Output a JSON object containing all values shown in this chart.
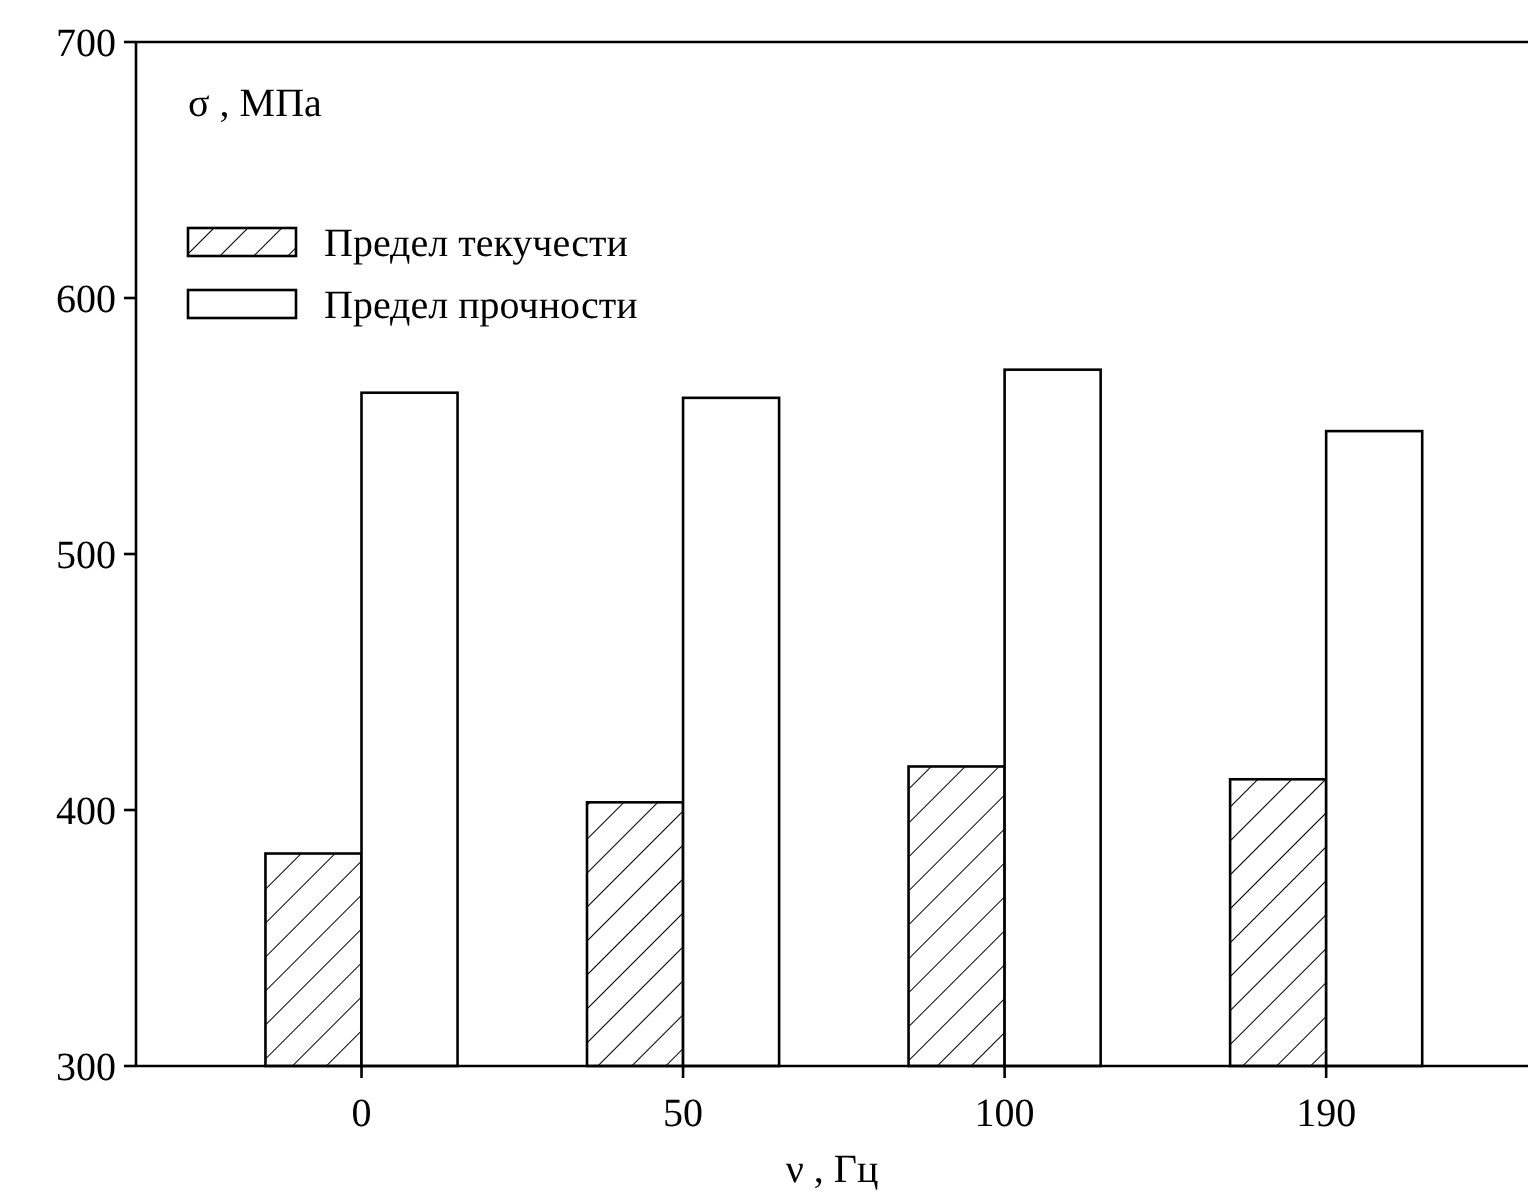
{
  "chart_data": {
    "type": "bar",
    "xlabel": "ν , Гц",
    "ylabel": "σ , МПа",
    "categories": [
      "0",
      "50",
      "100",
      "190"
    ],
    "series": [
      {
        "name": "Предел текучести",
        "color": "#000000",
        "values": [
          383,
          403,
          417,
          412
        ]
      },
      {
        "name": "Предел прочности",
        "color": "#000000",
        "values": [
          563,
          561,
          572,
          548
        ]
      }
    ],
    "ylim": [
      300,
      700
    ],
    "yticks": [
      300,
      400,
      500,
      600,
      700
    ],
    "grid": false,
    "legend": "top left"
  }
}
